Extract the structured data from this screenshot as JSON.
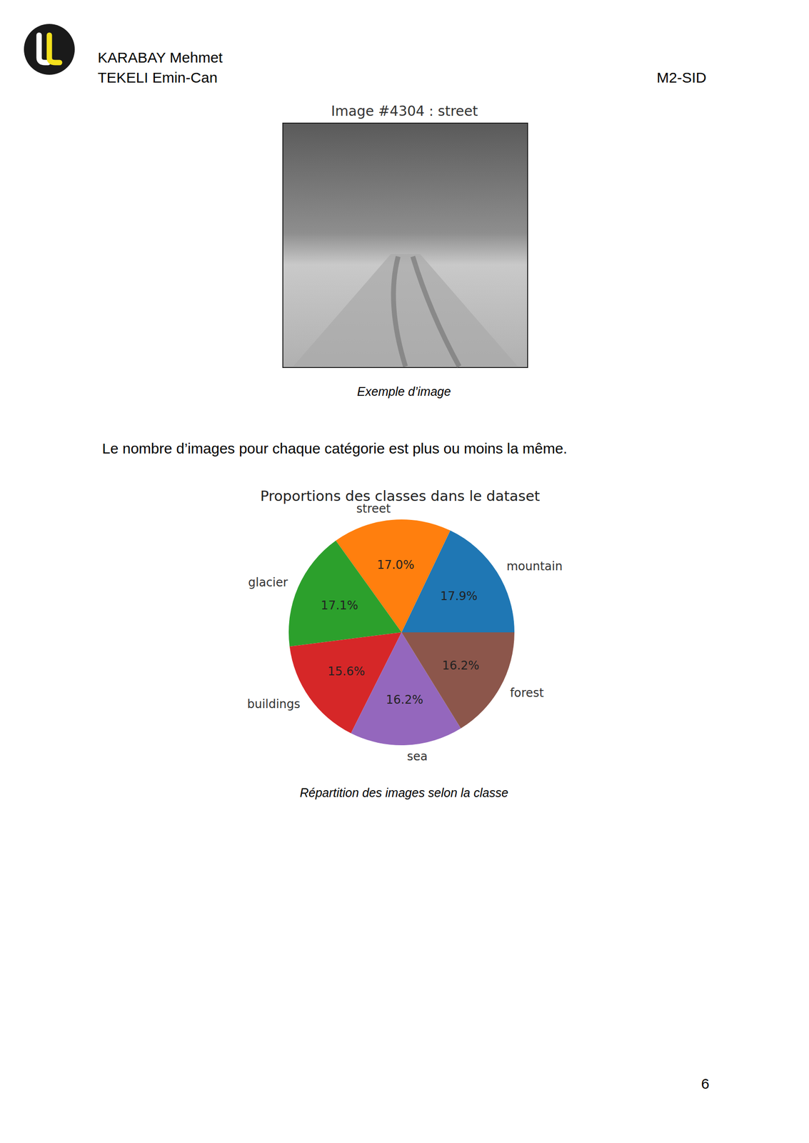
{
  "header": {
    "names": [
      "KARABAY Mehmet",
      "TEKELI Emin-Can"
    ],
    "course": "M2-SID"
  },
  "figure1": {
    "title": "Image #4304 : street",
    "caption": "Exemple d’image"
  },
  "paragraph": "Le nombre d’images pour chaque catégorie est plus ou moins la même.",
  "chart_data": {
    "type": "pie",
    "title": "Proportions des classes dans le dataset",
    "categories": [
      "mountain",
      "street",
      "glacier",
      "buildings",
      "sea",
      "forest"
    ],
    "values": [
      17.9,
      17.0,
      17.1,
      15.6,
      16.2,
      16.2
    ],
    "value_labels": [
      "17.9%",
      "17.0%",
      "17.1%",
      "15.6%",
      "16.2%",
      "16.2%"
    ],
    "colors": [
      "#1f77b4",
      "#ff7f0e",
      "#2ca02c",
      "#d62728",
      "#9467bd",
      "#8c564b"
    ],
    "data_labels": true
  },
  "figure2": {
    "caption": "Répartition des images selon la classe"
  },
  "page_number": 6
}
